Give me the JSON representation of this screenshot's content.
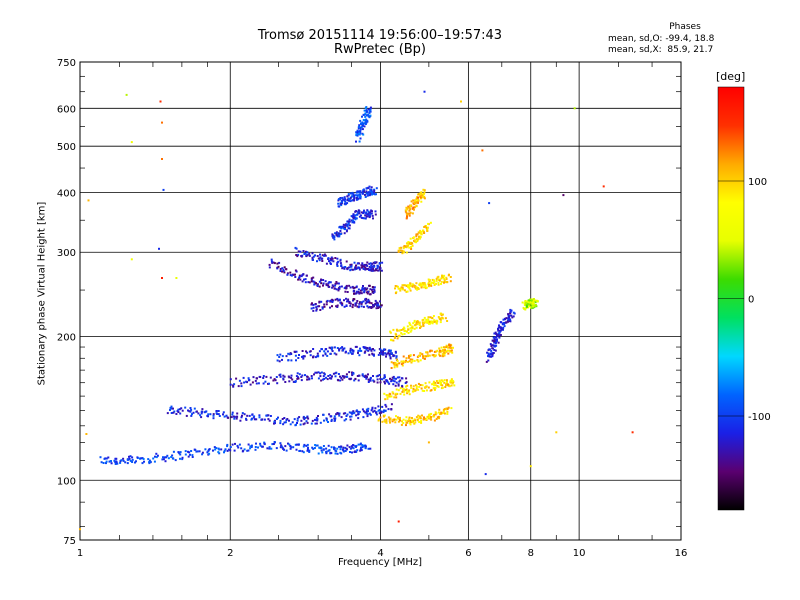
{
  "header": {
    "title_line1": "Tromsø 20151114 19:56:00–19:57:43",
    "title_line2": "RwPretec (Bp)"
  },
  "legend": {
    "heading": "Phases",
    "line_o": "mean, sd,O: -99.4, 18.8",
    "line_x": "mean, sd,X:  85.9, 21.7"
  },
  "colorbar": {
    "unit": "[deg]",
    "ticks": [
      "100",
      "0",
      "-100"
    ],
    "tick_values": [
      100,
      0,
      -100
    ],
    "range": [
      -180,
      180
    ],
    "colors": [
      "#000000",
      "#5a0070",
      "#1a20e6",
      "#0064ff",
      "#00d8ff",
      "#00e060",
      "#3cdc00",
      "#e8ff00",
      "#ffff00",
      "#ffaa00",
      "#ff3000",
      "#ff0000"
    ]
  },
  "chart_data": {
    "type": "scatter",
    "xlabel": "Frequency [MHz]",
    "ylabel": "Stationary phase Virtual Height [km]",
    "xscale": "log",
    "yscale": "log",
    "xlim": [
      1,
      16
    ],
    "ylim": [
      75,
      750
    ],
    "xticks": [
      1,
      2,
      4,
      6,
      8,
      10,
      16
    ],
    "xtick_labels": [
      "1",
      "2",
      "4",
      "6",
      "8",
      "10",
      "16"
    ],
    "yticks": [
      75,
      100,
      200,
      300,
      400,
      500,
      600,
      750
    ],
    "ytick_labels": [
      "75",
      "100",
      "200",
      "300",
      "400",
      "500",
      "600",
      "750"
    ],
    "grid": true,
    "color_variable": "phase [deg]",
    "traces": [
      {
        "x": [
          1.1,
          1.3,
          1.6,
          2.0,
          2.5,
          3.0,
          3.4,
          3.8
        ],
        "y": [
          110,
          110,
          113,
          117,
          118,
          116,
          116,
          118
        ],
        "phase": -100
      },
      {
        "x": [
          1.5,
          1.8,
          2.2,
          2.7,
          3.2,
          3.7,
          4.2
        ],
        "y": [
          140,
          138,
          135,
          133,
          135,
          138,
          142
        ],
        "phase": -110
      },
      {
        "x": [
          2.0,
          2.5,
          3.0,
          3.5,
          4.0,
          4.5
        ],
        "y": [
          160,
          163,
          165,
          165,
          163,
          160
        ],
        "phase": -120
      },
      {
        "x": [
          2.5,
          3.0,
          3.5,
          4.0,
          4.3
        ],
        "y": [
          180,
          185,
          187,
          185,
          182
        ],
        "phase": -115
      },
      {
        "x": [
          2.9,
          3.3,
          3.7,
          4.0
        ],
        "y": [
          230,
          235,
          235,
          232
        ],
        "phase": -125
      },
      {
        "x": [
          2.4,
          2.8,
          3.2,
          3.6,
          3.9
        ],
        "y": [
          285,
          265,
          255,
          250,
          250
        ],
        "phase": -130
      },
      {
        "x": [
          2.7,
          3.1,
          3.5,
          3.8,
          4.0
        ],
        "y": [
          300,
          290,
          280,
          280,
          280
        ],
        "phase": -120
      },
      {
        "x": [
          3.2,
          3.4,
          3.6,
          3.9
        ],
        "y": [
          320,
          340,
          360,
          360
        ],
        "phase": -110
      },
      {
        "x": [
          3.3,
          3.5,
          3.7,
          3.9
        ],
        "y": [
          380,
          390,
          400,
          405
        ],
        "phase": -105
      },
      {
        "x": [
          3.6,
          3.7,
          3.8
        ],
        "y": [
          520,
          560,
          600
        ],
        "phase": -95
      },
      {
        "x": [
          4.0,
          4.5,
          5.0,
          5.5
        ],
        "y": [
          135,
          133,
          135,
          140
        ],
        "phase": 100
      },
      {
        "x": [
          4.1,
          4.6,
          5.2,
          5.6
        ],
        "y": [
          150,
          155,
          158,
          160
        ],
        "phase": 95
      },
      {
        "x": [
          4.2,
          4.7,
          5.3,
          5.6
        ],
        "y": [
          175,
          180,
          185,
          190
        ],
        "phase": 105
      },
      {
        "x": [
          4.2,
          4.6,
          5.0,
          5.4
        ],
        "y": [
          200,
          210,
          215,
          220
        ],
        "phase": 90
      },
      {
        "x": [
          4.3,
          4.7,
          5.1,
          5.5
        ],
        "y": [
          250,
          255,
          260,
          265
        ],
        "phase": 95
      },
      {
        "x": [
          4.4,
          4.7,
          5.0
        ],
        "y": [
          300,
          320,
          340
        ],
        "phase": 100
      },
      {
        "x": [
          4.5,
          4.7,
          4.9
        ],
        "y": [
          360,
          380,
          400
        ],
        "phase": 110
      },
      {
        "x": [
          6.6,
          6.8,
          7.0,
          7.4
        ],
        "y": [
          180,
          195,
          210,
          225
        ],
        "phase": -120
      },
      {
        "x": [
          7.8,
          8.0,
          8.2
        ],
        "y": [
          232,
          235,
          233
        ],
        "phase": 40
      }
    ],
    "isolated_points": [
      {
        "x": 1.24,
        "y": 640,
        "phase": 40
      },
      {
        "x": 1.45,
        "y": 620,
        "phase": 150
      },
      {
        "x": 1.46,
        "y": 560,
        "phase": 130
      },
      {
        "x": 1.27,
        "y": 510,
        "phase": 60
      },
      {
        "x": 1.46,
        "y": 470,
        "phase": 130
      },
      {
        "x": 1.47,
        "y": 405,
        "phase": -100
      },
      {
        "x": 1.44,
        "y": 305,
        "phase": -110
      },
      {
        "x": 1.27,
        "y": 290,
        "phase": 60
      },
      {
        "x": 1.46,
        "y": 265,
        "phase": 160
      },
      {
        "x": 1.56,
        "y": 265,
        "phase": 50
      },
      {
        "x": 1.04,
        "y": 385,
        "phase": 110
      },
      {
        "x": 1.03,
        "y": 125,
        "phase": 110
      },
      {
        "x": 4.9,
        "y": 650,
        "phase": -110
      },
      {
        "x": 5.8,
        "y": 620,
        "phase": 100
      },
      {
        "x": 6.4,
        "y": 490,
        "phase": 130
      },
      {
        "x": 6.6,
        "y": 380,
        "phase": -100
      },
      {
        "x": 9.3,
        "y": 395,
        "phase": -150
      },
      {
        "x": 9.8,
        "y": 600,
        "phase": 40
      },
      {
        "x": 11.2,
        "y": 412,
        "phase": 150
      },
      {
        "x": 12.8,
        "y": 126,
        "phase": 150
      },
      {
        "x": 4.35,
        "y": 82,
        "phase": 160
      },
      {
        "x": 6.5,
        "y": 103,
        "phase": -110
      },
      {
        "x": 8.0,
        "y": 107,
        "phase": 90
      },
      {
        "x": 9.0,
        "y": 126,
        "phase": 100
      },
      {
        "x": 5.0,
        "y": 120,
        "phase": 110
      },
      {
        "x": 1.0,
        "y": 79,
        "phase": 110
      }
    ]
  }
}
